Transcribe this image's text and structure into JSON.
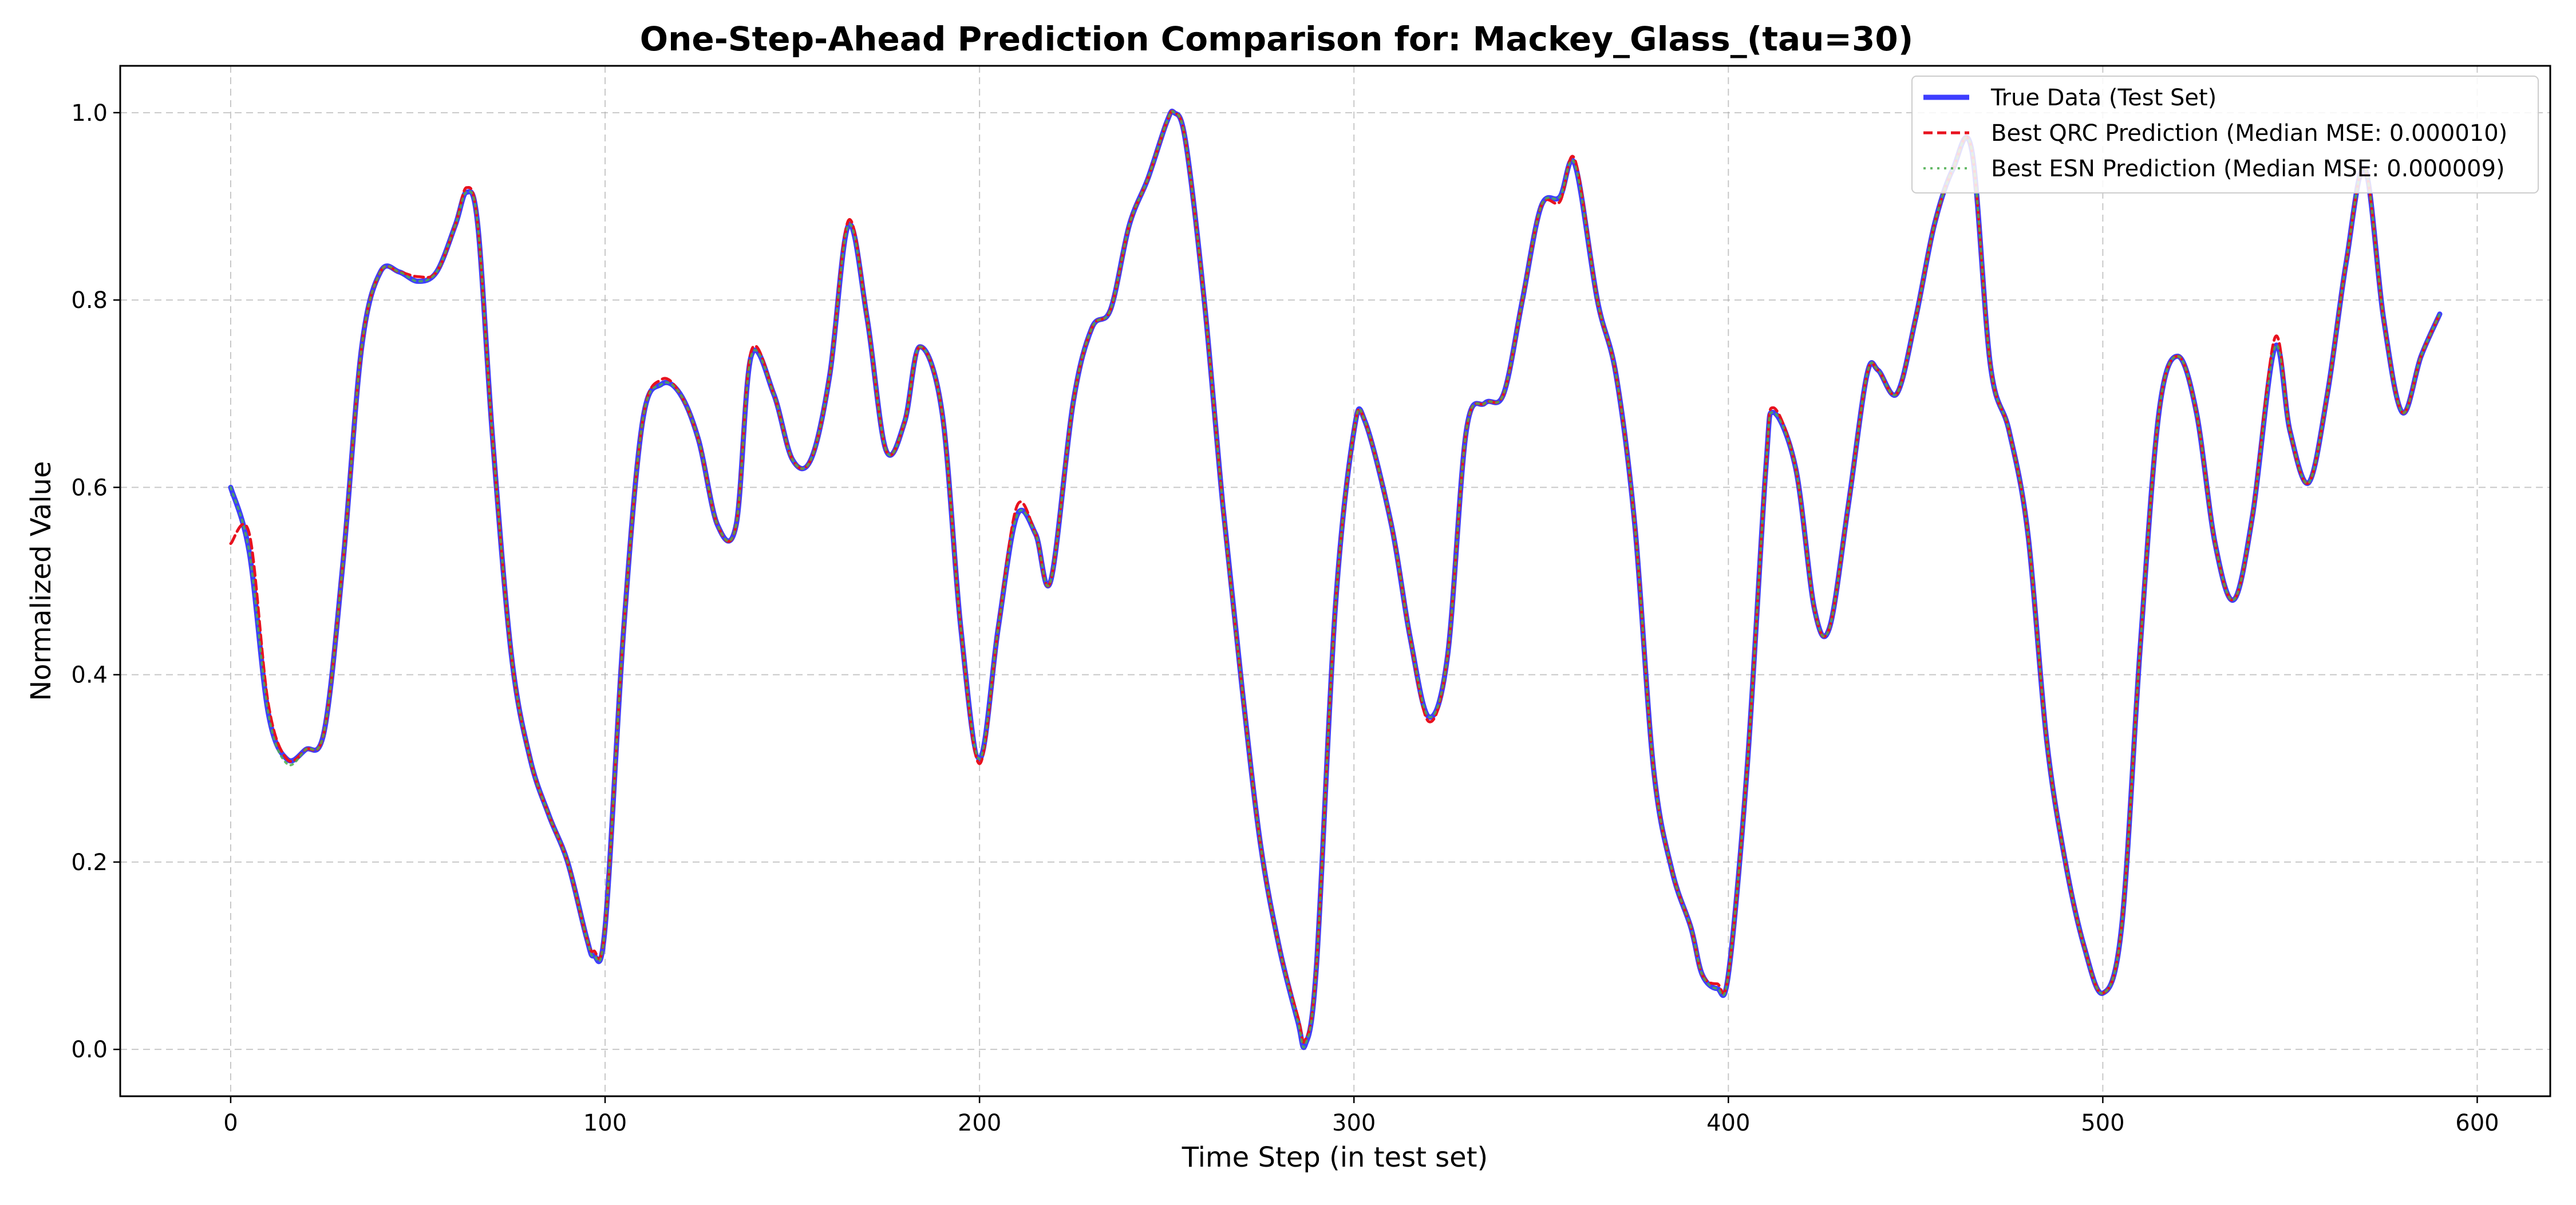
{
  "chart_data": {
    "type": "line",
    "title": "One-Step-Ahead Prediction Comparison for: Mackey_Glass_(tau=30)",
    "xlabel": "Time Step (in test set)",
    "ylabel": "Normalized Value",
    "xlim": [
      -29.5,
      619.5
    ],
    "ylim": [
      -0.05,
      1.05
    ],
    "xticks": [
      0,
      100,
      200,
      300,
      400,
      500,
      600
    ],
    "xtick_labels": [
      "0",
      "100",
      "200",
      "300",
      "400",
      "500",
      "600"
    ],
    "yticks": [
      0.0,
      0.2,
      0.4,
      0.6,
      0.8,
      1.0
    ],
    "ytick_labels": [
      "0.0",
      "0.2",
      "0.4",
      "0.6",
      "0.8",
      "1.0"
    ],
    "grid": true,
    "legend_position": "top-right",
    "x": [
      0,
      5,
      10,
      15,
      20,
      25,
      30,
      35,
      40,
      45,
      50,
      55,
      60,
      63,
      66,
      70,
      75,
      80,
      85,
      90,
      95,
      97,
      100,
      105,
      110,
      115,
      120,
      125,
      130,
      135,
      139,
      145,
      150,
      155,
      160,
      165,
      170,
      175,
      180,
      184,
      190,
      195,
      200,
      205,
      210,
      215,
      219,
      225,
      230,
      235,
      240,
      245,
      250,
      252,
      255,
      260,
      265,
      270,
      275,
      280,
      285,
      287,
      290,
      295,
      300,
      303,
      310,
      315,
      320,
      325,
      330,
      335,
      340,
      345,
      350,
      355,
      359,
      365,
      370,
      375,
      380,
      385,
      390,
      393,
      397,
      400,
      405,
      410,
      412,
      418,
      423,
      427,
      432,
      437,
      440,
      445,
      450,
      455,
      460,
      465,
      470,
      475,
      480,
      485,
      490,
      495,
      500,
      505,
      510,
      515,
      520,
      525,
      530,
      535,
      540,
      546,
      550,
      555,
      560,
      565,
      570,
      575,
      580,
      585,
      590
    ],
    "series": [
      {
        "name": "True Data (Test Set)",
        "color": "#2a2aff",
        "style": "solid",
        "values": [
          0.6,
          0.53,
          0.36,
          0.31,
          0.32,
          0.34,
          0.52,
          0.75,
          0.83,
          0.83,
          0.82,
          0.83,
          0.88,
          0.915,
          0.88,
          0.65,
          0.42,
          0.31,
          0.25,
          0.2,
          0.12,
          0.1,
          0.13,
          0.45,
          0.67,
          0.71,
          0.7,
          0.65,
          0.56,
          0.56,
          0.74,
          0.7,
          0.63,
          0.63,
          0.72,
          0.88,
          0.78,
          0.64,
          0.67,
          0.75,
          0.68,
          0.45,
          0.31,
          0.45,
          0.57,
          0.55,
          0.5,
          0.69,
          0.77,
          0.79,
          0.88,
          0.93,
          0.99,
          1.0,
          0.97,
          0.8,
          0.58,
          0.39,
          0.22,
          0.11,
          0.03,
          0.005,
          0.09,
          0.47,
          0.66,
          0.67,
          0.56,
          0.44,
          0.355,
          0.42,
          0.66,
          0.69,
          0.7,
          0.8,
          0.9,
          0.91,
          0.945,
          0.8,
          0.72,
          0.56,
          0.3,
          0.19,
          0.13,
          0.08,
          0.065,
          0.08,
          0.3,
          0.62,
          0.68,
          0.62,
          0.47,
          0.45,
          0.58,
          0.72,
          0.725,
          0.7,
          0.78,
          0.88,
          0.94,
          0.96,
          0.73,
          0.66,
          0.55,
          0.33,
          0.2,
          0.11,
          0.06,
          0.13,
          0.43,
          0.68,
          0.74,
          0.68,
          0.54,
          0.48,
          0.57,
          0.75,
          0.66,
          0.605,
          0.7,
          0.84,
          0.94,
          0.78,
          0.68,
          0.74,
          0.785
        ]
      },
      {
        "name": "Best QRC Prediction (Median MSE: 0.000010)",
        "color": "#e8121f",
        "style": "dashed",
        "values": [
          0.54,
          0.55,
          0.37,
          0.31,
          0.32,
          0.34,
          0.52,
          0.75,
          0.83,
          0.83,
          0.825,
          0.83,
          0.88,
          0.92,
          0.88,
          0.65,
          0.42,
          0.31,
          0.25,
          0.2,
          0.12,
          0.105,
          0.13,
          0.45,
          0.67,
          0.715,
          0.7,
          0.65,
          0.56,
          0.56,
          0.745,
          0.7,
          0.63,
          0.63,
          0.72,
          0.885,
          0.78,
          0.64,
          0.67,
          0.75,
          0.68,
          0.45,
          0.305,
          0.45,
          0.58,
          0.55,
          0.5,
          0.69,
          0.77,
          0.79,
          0.88,
          0.93,
          0.99,
          1.0,
          0.97,
          0.8,
          0.58,
          0.39,
          0.22,
          0.11,
          0.035,
          0.01,
          0.09,
          0.47,
          0.66,
          0.67,
          0.56,
          0.44,
          0.35,
          0.42,
          0.66,
          0.69,
          0.7,
          0.8,
          0.9,
          0.905,
          0.95,
          0.8,
          0.72,
          0.56,
          0.3,
          0.19,
          0.13,
          0.08,
          0.07,
          0.08,
          0.3,
          0.62,
          0.685,
          0.62,
          0.47,
          0.45,
          0.58,
          0.72,
          0.725,
          0.7,
          0.78,
          0.88,
          0.94,
          0.96,
          0.73,
          0.66,
          0.55,
          0.33,
          0.2,
          0.11,
          0.06,
          0.13,
          0.43,
          0.68,
          0.74,
          0.68,
          0.54,
          0.48,
          0.57,
          0.76,
          0.66,
          0.605,
          0.7,
          0.84,
          0.94,
          0.78,
          0.68,
          0.74,
          0.785
        ]
      },
      {
        "name": "Best ESN Prediction (Median MSE: 0.000009)",
        "color": "#4caf50",
        "style": "dotted",
        "values": [
          0.6,
          0.53,
          0.36,
          0.305,
          0.32,
          0.34,
          0.52,
          0.75,
          0.83,
          0.83,
          0.82,
          0.83,
          0.88,
          0.915,
          0.88,
          0.65,
          0.42,
          0.31,
          0.25,
          0.2,
          0.12,
          0.1,
          0.13,
          0.45,
          0.67,
          0.71,
          0.7,
          0.65,
          0.56,
          0.56,
          0.74,
          0.7,
          0.63,
          0.63,
          0.72,
          0.88,
          0.78,
          0.64,
          0.67,
          0.75,
          0.68,
          0.45,
          0.31,
          0.45,
          0.57,
          0.55,
          0.5,
          0.69,
          0.77,
          0.79,
          0.88,
          0.93,
          0.99,
          1.0,
          0.97,
          0.8,
          0.58,
          0.39,
          0.22,
          0.11,
          0.03,
          0.005,
          0.09,
          0.47,
          0.66,
          0.67,
          0.56,
          0.44,
          0.355,
          0.42,
          0.66,
          0.69,
          0.7,
          0.8,
          0.9,
          0.91,
          0.945,
          0.8,
          0.72,
          0.56,
          0.3,
          0.19,
          0.13,
          0.08,
          0.065,
          0.08,
          0.3,
          0.62,
          0.68,
          0.62,
          0.47,
          0.45,
          0.58,
          0.72,
          0.725,
          0.7,
          0.78,
          0.88,
          0.94,
          0.96,
          0.73,
          0.66,
          0.55,
          0.33,
          0.2,
          0.11,
          0.06,
          0.13,
          0.43,
          0.68,
          0.74,
          0.68,
          0.54,
          0.48,
          0.57,
          0.75,
          0.66,
          0.605,
          0.7,
          0.84,
          0.94,
          0.78,
          0.68,
          0.74,
          0.785
        ]
      }
    ]
  }
}
